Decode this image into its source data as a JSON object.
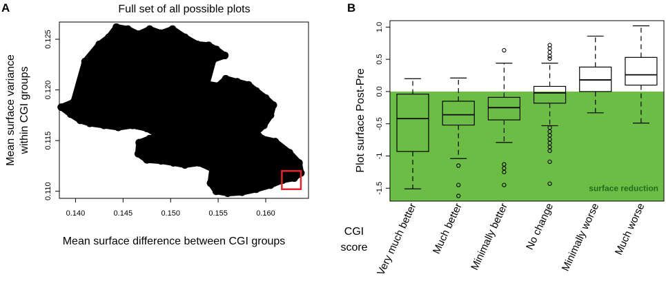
{
  "chart_data": [
    {
      "panel": "A",
      "type": "scatter",
      "title": "Full set of all possible plots",
      "xlabel": "Mean surface difference between CGI groups",
      "ylabel_lines": [
        "Mean surface variance",
        "within CGI groups"
      ],
      "xlim": [
        0.1383,
        0.1645
      ],
      "ylim": [
        0.1093,
        0.1267
      ],
      "xticks": [
        0.14,
        0.145,
        0.15,
        0.155,
        0.16
      ],
      "yticks": [
        0.11,
        0.115,
        0.12,
        0.125
      ],
      "xtick_labels": [
        "0.140",
        "0.145",
        "0.150",
        "0.155",
        "0.160"
      ],
      "ytick_labels": [
        "0.110",
        "0.115",
        "0.120",
        "0.125"
      ],
      "cloud_outline": [
        [
          0.1385,
          0.1183
        ],
        [
          0.1398,
          0.1188
        ],
        [
          0.141,
          0.1228
        ],
        [
          0.1425,
          0.1245
        ],
        [
          0.1435,
          0.1252
        ],
        [
          0.1443,
          0.1262
        ],
        [
          0.1455,
          0.126
        ],
        [
          0.1466,
          0.1255
        ],
        [
          0.1478,
          0.126
        ],
        [
          0.149,
          0.1256
        ],
        [
          0.1502,
          0.126
        ],
        [
          0.1515,
          0.1252
        ],
        [
          0.1528,
          0.1245
        ],
        [
          0.154,
          0.1244
        ],
        [
          0.1548,
          0.124
        ],
        [
          0.1557,
          0.1234
        ],
        [
          0.1545,
          0.123
        ],
        [
          0.1538,
          0.1206
        ],
        [
          0.155,
          0.1204
        ],
        [
          0.1558,
          0.1211
        ],
        [
          0.157,
          0.1208
        ],
        [
          0.1582,
          0.1205
        ],
        [
          0.159,
          0.1199
        ],
        [
          0.16,
          0.1192
        ],
        [
          0.1608,
          0.1185
        ],
        [
          0.1605,
          0.1175
        ],
        [
          0.1598,
          0.1165
        ],
        [
          0.159,
          0.1158
        ],
        [
          0.1596,
          0.1152
        ],
        [
          0.161,
          0.1149
        ],
        [
          0.1625,
          0.1138
        ],
        [
          0.1635,
          0.1128
        ],
        [
          0.1637,
          0.1118
        ],
        [
          0.163,
          0.1113
        ],
        [
          0.1618,
          0.1111
        ],
        [
          0.1605,
          0.1106
        ],
        [
          0.159,
          0.1102
        ],
        [
          0.1575,
          0.1099
        ],
        [
          0.156,
          0.1098
        ],
        [
          0.1548,
          0.11
        ],
        [
          0.1542,
          0.1108
        ],
        [
          0.1544,
          0.1122
        ],
        [
          0.153,
          0.1128
        ],
        [
          0.1515,
          0.1126
        ],
        [
          0.1503,
          0.1128
        ],
        [
          0.149,
          0.113
        ],
        [
          0.1475,
          0.1131
        ],
        [
          0.1466,
          0.1137
        ],
        [
          0.1467,
          0.1148
        ],
        [
          0.1478,
          0.1152
        ],
        [
          0.1488,
          0.1155
        ],
        [
          0.1475,
          0.1162
        ],
        [
          0.146,
          0.1165
        ],
        [
          0.1445,
          0.1163
        ],
        [
          0.143,
          0.1165
        ],
        [
          0.1415,
          0.1167
        ],
        [
          0.1405,
          0.117
        ],
        [
          0.1395,
          0.1176
        ]
      ],
      "highlight_box": {
        "x": [
          0.1617,
          0.1637
        ],
        "y": [
          0.1102,
          0.112
        ],
        "color": "#e3242b"
      }
    },
    {
      "panel": "B",
      "type": "box",
      "ylabel": "Plot surface Post-Pre",
      "xlabel_lines": [
        "CGI",
        "score"
      ],
      "ylim": [
        -1.7,
        1.1
      ],
      "yticks": [
        -1.5,
        -1.0,
        -0.5,
        0.0,
        0.5,
        1.0
      ],
      "ytick_labels": [
        "-1.5",
        "-1",
        "-0.5",
        "0.0",
        "0.5",
        "1.0"
      ],
      "categories": [
        "Very much better",
        "Much better",
        "Minimally better",
        "No change",
        "Minimally worse",
        "Much worse"
      ],
      "boxes": [
        {
          "whisker_low": -1.51,
          "q1": -0.93,
          "median": -0.42,
          "q3": -0.04,
          "whisker_high": 0.2,
          "outliers": []
        },
        {
          "whisker_low": -1.04,
          "q1": -0.52,
          "median": -0.36,
          "q3": -0.15,
          "whisker_high": 0.21,
          "outliers": [
            -1.15,
            -1.45,
            -1.62
          ]
        },
        {
          "whisker_low": -0.79,
          "q1": -0.44,
          "median": -0.25,
          "q3": -0.09,
          "whisker_high": 0.44,
          "outliers": [
            0.64,
            -1.13,
            -1.19,
            -1.25,
            -1.45
          ]
        },
        {
          "whisker_low": -0.53,
          "q1": -0.18,
          "median": -0.02,
          "q3": 0.08,
          "whisker_high": 0.44,
          "outliers": [
            0.72,
            0.67,
            0.61,
            0.55,
            0.51,
            -0.56,
            -0.62,
            -0.68,
            -0.74,
            -0.8,
            -0.86,
            -0.92,
            -1.09,
            -1.43
          ]
        },
        {
          "whisker_low": -0.33,
          "q1": 0.0,
          "median": 0.18,
          "q3": 0.38,
          "whisker_high": 0.86,
          "outliers": []
        },
        {
          "whisker_low": -0.49,
          "q1": 0.1,
          "median": 0.26,
          "q3": 0.53,
          "whisker_high": 1.02,
          "outliers": []
        }
      ],
      "shaded_region": {
        "from": -1.7,
        "to": 0.0,
        "color": "#6cbd45",
        "label": "surface reduction",
        "label_color": "#1e6e1e"
      }
    }
  ]
}
